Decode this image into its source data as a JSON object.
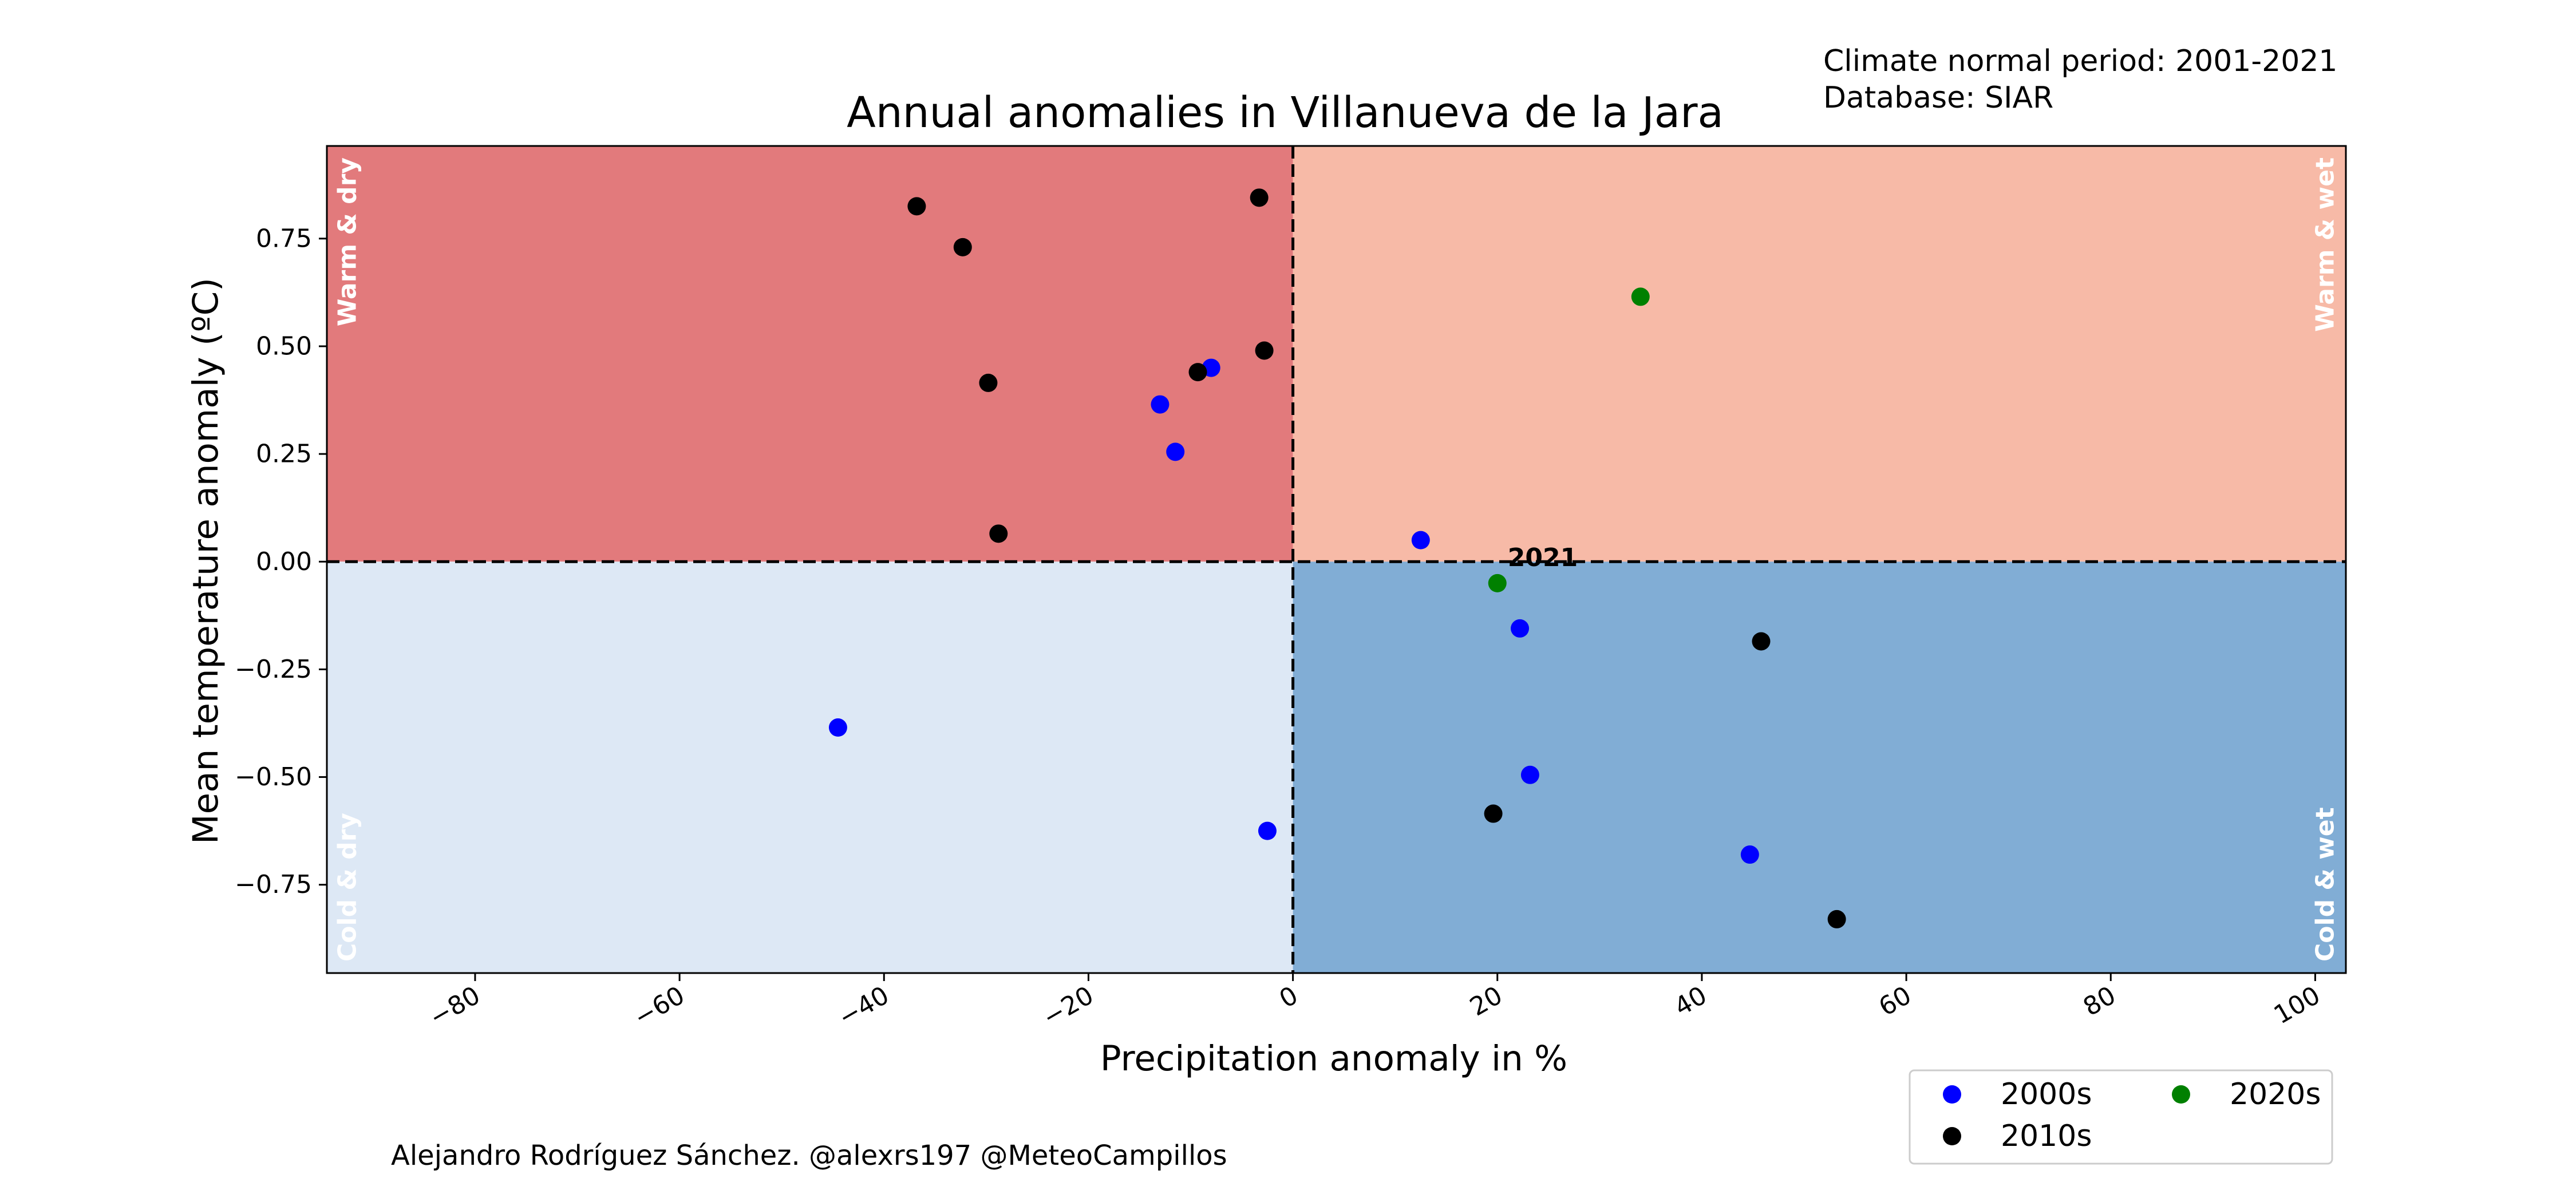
{
  "header": {
    "normal_period": "Climate normal period: 2001-2021",
    "database": "Database: SIAR"
  },
  "credits": "Alejandro Rodríguez Sánchez. @alexrs197 @MeteoCampillos",
  "chart_data": {
    "type": "scatter",
    "title": "Annual anomalies in Villanueva de la Jara",
    "xlabel": "Precipitation anomaly in %",
    "ylabel": "Mean temperature anomaly (ºC)",
    "xlim": [
      -94.5,
      103
    ],
    "ylim": [
      -0.955,
      0.965
    ],
    "xticks": [
      -80,
      -60,
      -40,
      -20,
      0,
      20,
      40,
      60,
      80,
      100
    ],
    "xtick_labels": [
      "−80",
      "−60",
      "−40",
      "−20",
      "0",
      "20",
      "40",
      "60",
      "80",
      "100"
    ],
    "yticks": [
      -0.75,
      -0.5,
      -0.25,
      0,
      0.25,
      0.5,
      0.75
    ],
    "ytick_labels": [
      "−0.75",
      "−0.50",
      "−0.25",
      "0.00",
      "0.25",
      "0.50",
      "0.75"
    ],
    "grid": false,
    "reference_lines": {
      "x": 0,
      "y": 0,
      "style": "dashed"
    },
    "quadrants": [
      {
        "label": "Warm & dry",
        "x": [
          -94.5,
          0
        ],
        "y": [
          0,
          0.965
        ],
        "color": "#e27a7c",
        "label_color": "#ffffff",
        "corner": "top-left"
      },
      {
        "label": "Warm & wet",
        "x": [
          0,
          103
        ],
        "y": [
          0,
          0.965
        ],
        "color": "#f7baa7",
        "label_color": "#ffffff",
        "corner": "top-right"
      },
      {
        "label": "Cold & dry",
        "x": [
          -94.5,
          0
        ],
        "y": [
          -0.955,
          0
        ],
        "color": "#dde8f5",
        "label_color": "#ffffff",
        "corner": "bottom-left"
      },
      {
        "label": "Cold & wet",
        "x": [
          0,
          103
        ],
        "y": [
          -0.955,
          0
        ],
        "color": "#81add5",
        "label_color": "#ffffff",
        "corner": "bottom-right"
      }
    ],
    "series": [
      {
        "name": "2000s",
        "color": "#0000ff",
        "points": [
          [
            -44.5,
            -0.385
          ],
          [
            -13,
            0.365
          ],
          [
            -11.5,
            0.255
          ],
          [
            -8,
            0.45
          ],
          [
            -2.5,
            -0.625
          ],
          [
            12.5,
            0.05
          ],
          [
            22.2,
            -0.155
          ],
          [
            23.2,
            -0.495
          ],
          [
            44.7,
            -0.68
          ]
        ]
      },
      {
        "name": "2010s",
        "color": "#000000",
        "points": [
          [
            -36.8,
            0.825
          ],
          [
            -32.3,
            0.73
          ],
          [
            -29.8,
            0.415
          ],
          [
            -28.8,
            0.065
          ],
          [
            -9.3,
            0.44
          ],
          [
            -3.3,
            0.845
          ],
          [
            -2.8,
            0.49
          ],
          [
            19.6,
            -0.585
          ],
          [
            45.8,
            -0.185
          ],
          [
            53.2,
            -0.83
          ]
        ]
      },
      {
        "name": "2020s",
        "color": "#008000",
        "points": [
          [
            34,
            0.615
          ],
          [
            20,
            -0.05
          ]
        ]
      }
    ],
    "annotations": [
      {
        "text": "2021",
        "x": 20,
        "y": -0.05
      }
    ],
    "legend": {
      "placement": "bottom-right",
      "columns": 2,
      "order": [
        "2000s",
        "2010s",
        "2020s"
      ]
    }
  }
}
